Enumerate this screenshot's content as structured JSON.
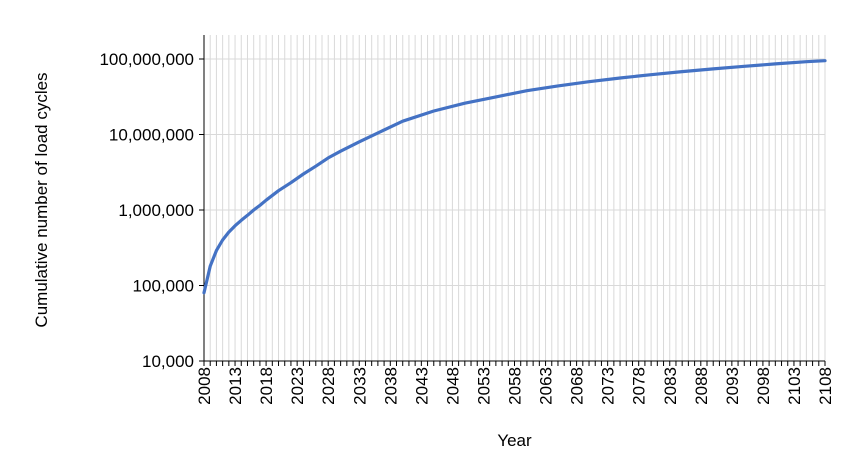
{
  "chart_data": {
    "type": "line",
    "title": "",
    "xlabel": "Year",
    "ylabel": "Cumulative number of load cycles",
    "y_scale": "log",
    "xlim": [
      2008,
      2108
    ],
    "ylim": [
      10000,
      100000000
    ],
    "x_tick_labels": [
      "2008",
      "2013",
      "2018",
      "2023",
      "2028",
      "2033",
      "2038",
      "2043",
      "2048",
      "2053",
      "2058",
      "2063",
      "2068",
      "2073",
      "2078",
      "2083",
      "2088",
      "2093",
      "2098",
      "2103",
      "2108"
    ],
    "y_tick_labels": [
      "10,000",
      "100,000",
      "1,000,000",
      "10,000,000",
      "100,000,000"
    ],
    "grid": "vertical gridline every year, horizontal gridline at each power of ten",
    "line_color": "#4472C4",
    "series": [
      {
        "x": [
          2008,
          2009,
          2010,
          2011,
          2012,
          2013,
          2014,
          2015,
          2016,
          2017,
          2018,
          2020,
          2022,
          2024,
          2026,
          2028,
          2030,
          2033,
          2036,
          2040,
          2045,
          2050,
          2055,
          2060,
          2065,
          2070,
          2075,
          2080,
          2085,
          2090,
          2095,
          2100,
          2105,
          2108
        ],
        "values": [
          80000,
          180000,
          290000,
          400000,
          510000,
          620000,
          730000,
          850000,
          1000000,
          1150000,
          1350000,
          1800000,
          2300000,
          3000000,
          3800000,
          4900000,
          6000000,
          8000000,
          10500000,
          15000000,
          20500000,
          26000000,
          31500000,
          38000000,
          44000000,
          50000000,
          56000000,
          62000000,
          68000000,
          74000000,
          80000000,
          86000000,
          92000000,
          95000000
        ]
      }
    ]
  }
}
